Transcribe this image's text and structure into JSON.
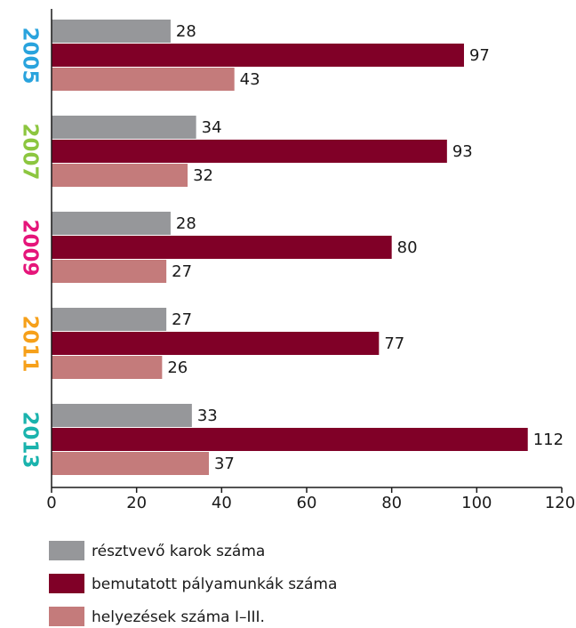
{
  "chart_data": {
    "type": "barh",
    "categories": [
      "2005",
      "2007",
      "2009",
      "2011",
      "2013"
    ],
    "category_colors": [
      "#29a3dd",
      "#8cc63f",
      "#e5157a",
      "#f6a01a",
      "#1ab3ad"
    ],
    "series": [
      {
        "name": "résztvevő karok száma",
        "color": "#96979a",
        "values": [
          28,
          34,
          28,
          27,
          33
        ]
      },
      {
        "name": "bemutatott pályamunkák száma",
        "color": "#800027",
        "values": [
          97,
          93,
          80,
          77,
          112
        ]
      },
      {
        "name": "helyezések száma I–III.",
        "color": "#c47b7b",
        "values": [
          43,
          32,
          27,
          26,
          37
        ]
      }
    ],
    "xlim": [
      0,
      120
    ],
    "xticks": [
      0,
      20,
      40,
      60,
      80,
      100,
      120
    ],
    "grid": false,
    "legend": "bottom"
  }
}
